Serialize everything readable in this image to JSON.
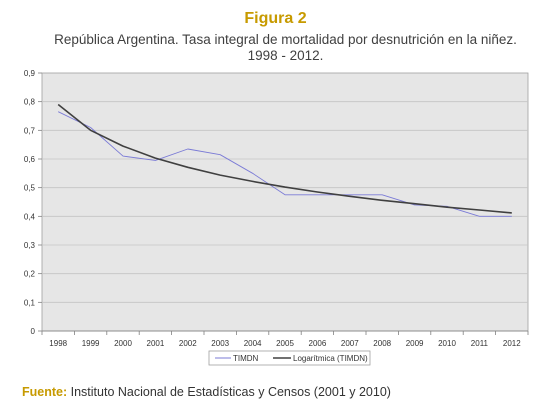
{
  "figure_label": "Figura 2",
  "title_line1": "República Argentina. Tasa integral de mortalidad por desnutrición en la niñez.",
  "title_line2": "1998 - 2012.",
  "source_label": "Fuente:",
  "source_text": "Instituto Nacional de Estadísticas y Censos (2001 y 2010)",
  "colors": {
    "timdn": "#7b7bd6",
    "log": "#404040",
    "plot_bg": "#e6e6e6",
    "accent": "#c79a00"
  },
  "chart_data": {
    "type": "line",
    "categories": [
      "1998",
      "1999",
      "2000",
      "2001",
      "2002",
      "2003",
      "2004",
      "2005",
      "2006",
      "2007",
      "2008",
      "2009",
      "2010",
      "2011",
      "2012"
    ],
    "ylim": [
      0,
      0.9
    ],
    "yticks": [
      "0",
      "0,1",
      "0,2",
      "0,3",
      "0,4",
      "0,5",
      "0,6",
      "0,7",
      "0,8",
      "0,9"
    ],
    "grid": true,
    "legend_position": "bottom",
    "series": [
      {
        "name": "TIMDN",
        "values": [
          0.765,
          0.71,
          0.61,
          0.595,
          0.635,
          0.615,
          0.55,
          0.475,
          0.475,
          0.475,
          0.475,
          0.44,
          0.435,
          0.4,
          0.4
        ]
      },
      {
        "name": "Logarítmica (TIMDN)",
        "values": [
          0.79,
          0.7,
          0.645,
          0.603,
          0.571,
          0.544,
          0.522,
          0.502,
          0.485,
          0.47,
          0.456,
          0.444,
          0.432,
          0.422,
          0.412
        ]
      }
    ]
  }
}
